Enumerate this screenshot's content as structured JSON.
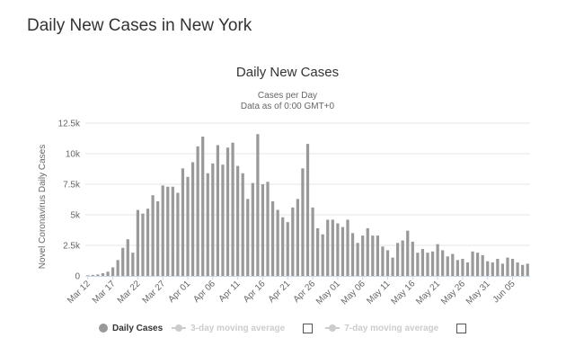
{
  "page": {
    "title": "Daily New Cases in New York"
  },
  "legend": {
    "daily_cases": "Daily Cases",
    "moving_avg_3": "3-day moving average",
    "moving_avg_7": "7-day moving average"
  },
  "colors": {
    "bar": "#999999",
    "grid": "#e6e6e6",
    "text": "#333333",
    "muted": "#cccccc"
  },
  "chart_data": {
    "type": "bar",
    "title": "Daily New Cases",
    "subtitle": [
      "Cases per Day",
      "Data as of 0:00 GMT+0"
    ],
    "xlabel": "",
    "ylabel": "Novel Coronavirus Daily Cases",
    "ylim": [
      0,
      12500
    ],
    "yticks": [
      0,
      2500,
      5000,
      7500,
      10000,
      12500
    ],
    "ytick_labels": [
      "0",
      "2.5k",
      "5k",
      "7.5k",
      "10k",
      "12.5k"
    ],
    "xtick_labels": [
      "Mar 12",
      "Mar 17",
      "Mar 22",
      "Mar 27",
      "Apr 01",
      "Apr 06",
      "Apr 11",
      "Apr 16",
      "Apr 21",
      "Apr 26",
      "May 01",
      "May 06",
      "May 11",
      "May 16",
      "May 21",
      "May 26",
      "May 31",
      "Jun 05"
    ],
    "x_start": "Mar 12",
    "x_end": "Jun 07",
    "series": [
      {
        "name": "Daily Cases",
        "values": [
          50,
          80,
          120,
          220,
          350,
          700,
          1300,
          2300,
          3000,
          1900,
          5400,
          5100,
          5500,
          6600,
          6100,
          7400,
          7300,
          7300,
          6800,
          8800,
          8100,
          9300,
          10600,
          11400,
          8400,
          9200,
          10700,
          9100,
          10500,
          10900,
          9000,
          8400,
          6300,
          7600,
          11600,
          7500,
          7700,
          6100,
          5400,
          4800,
          4400,
          5600,
          6300,
          8800,
          10800,
          5600,
          3900,
          3400,
          4600,
          4600,
          4300,
          4000,
          4600,
          3500,
          2700,
          3300,
          3900,
          3300,
          3300,
          2400,
          2100,
          1500,
          2700,
          2900,
          3700,
          2800,
          1900,
          2200,
          1900,
          2000,
          2600,
          2100,
          1600,
          1800,
          1300,
          1400,
          1100,
          2000,
          1900,
          1700,
          1200,
          1100,
          1400,
          1000,
          1500,
          1400,
          1100,
          900,
          1000
        ]
      }
    ]
  }
}
